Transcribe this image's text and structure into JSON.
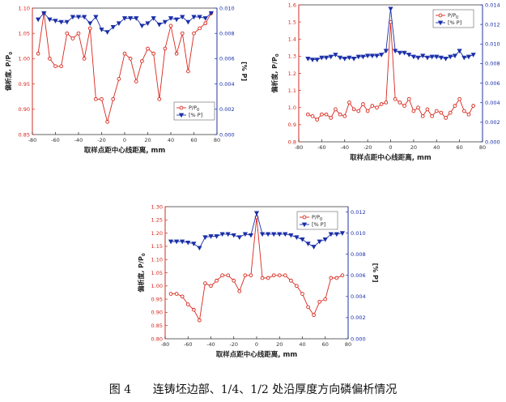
{
  "caption": "图 4      连铸坯边部、1/4、1/2 处沿厚度方向磷偏析情况",
  "chart_data": [
    {
      "type": "line",
      "xlabel": "取样点距中心线距离, mm",
      "ylabel": "偏析度, P/P",
      "ylabel_sub": "0",
      "y2label": "[% P]",
      "xlim": [
        -80,
        80
      ],
      "xticks": [
        -80,
        -60,
        -40,
        -20,
        0,
        20,
        40,
        60,
        80
      ],
      "ylim": [
        0.85,
        1.1
      ],
      "yticks": [
        0.85,
        0.9,
        0.95,
        1.0,
        1.05,
        1.1
      ],
      "ytick_labels": [
        "0.85",
        "0.90",
        "0.95",
        "1.00",
        "1.05",
        "1.10"
      ],
      "y2lim": [
        0,
        0.01
      ],
      "y2ticks": [
        0,
        0.002,
        0.004,
        0.006,
        0.008,
        0.01
      ],
      "y2tick_labels": [
        "0.000",
        "0.002",
        "0.004",
        "0.006",
        "0.008",
        "0.010"
      ],
      "legend_position": "middle-left",
      "legend": [
        {
          "label": "P/P",
          "sub": "0",
          "series": 0
        },
        {
          "label": "[% P]",
          "series": 1
        }
      ],
      "series": [
        {
          "marker": "circle",
          "color": "#d9261c",
          "axis": "left",
          "x": [
            -75,
            -70,
            -65,
            -60,
            -55,
            -50,
            -45,
            -40,
            -35,
            -30,
            -25,
            -20,
            -15,
            -10,
            -5,
            0,
            5,
            10,
            15,
            20,
            25,
            30,
            35,
            40,
            45,
            50,
            55,
            60,
            65,
            70,
            75
          ],
          "y": [
            1.01,
            1.09,
            1.0,
            0.985,
            0.985,
            1.05,
            1.04,
            1.05,
            1.0,
            1.06,
            0.92,
            0.92,
            0.875,
            0.92,
            0.96,
            1.01,
            1.0,
            0.955,
            0.995,
            1.02,
            1.01,
            0.92,
            1.02,
            1.065,
            1.01,
            1.05,
            0.975,
            1.05,
            1.06,
            1.07,
            1.09
          ]
        },
        {
          "marker": "triangle-down",
          "color": "#1a2fa8",
          "axis": "right",
          "x": [
            -75,
            -70,
            -65,
            -60,
            -55,
            -50,
            -45,
            -40,
            -35,
            -30,
            -25,
            -20,
            -15,
            -10,
            -5,
            0,
            5,
            10,
            15,
            20,
            25,
            30,
            35,
            40,
            45,
            50,
            55,
            60,
            65,
            70,
            75
          ],
          "y": [
            0.0091,
            0.0096,
            0.0091,
            0.009,
            0.0089,
            0.0089,
            0.0093,
            0.0093,
            0.0093,
            0.0088,
            0.0093,
            0.0083,
            0.0081,
            0.0085,
            0.0088,
            0.0092,
            0.0092,
            0.0092,
            0.0086,
            0.0088,
            0.0092,
            0.0087,
            0.0089,
            0.0092,
            0.0091,
            0.0093,
            0.0089,
            0.0093,
            0.0093,
            0.0092,
            0.0096
          ]
        }
      ]
    },
    {
      "type": "line",
      "xlabel": "取样点距中心线距离, mm",
      "ylabel": "偏析度, P/P",
      "ylabel_sub": "0",
      "y2label": "[% P]",
      "xlim": [
        -80,
        80
      ],
      "xticks": [
        -80,
        -60,
        -40,
        -20,
        0,
        20,
        40,
        60,
        80
      ],
      "ylim": [
        0.8,
        1.6
      ],
      "yticks": [
        0.8,
        0.9,
        1.0,
        1.1,
        1.2,
        1.3,
        1.4,
        1.5,
        1.6
      ],
      "ytick_labels": [
        "0.8",
        "0.9",
        "1.0",
        "1.1",
        "1.2",
        "1.3",
        "1.4",
        "1.5",
        "1.6"
      ],
      "y2lim": [
        0,
        0.014
      ],
      "y2ticks": [
        0,
        0.002,
        0.004,
        0.006,
        0.008,
        0.01,
        0.012,
        0.014
      ],
      "y2tick_labels": [
        "0.000",
        "0.002",
        "0.004",
        "0.006",
        "0.008",
        "0.010",
        "0.012",
        "0.014"
      ],
      "legend_position": "top-right",
      "legend": [
        {
          "label": "P/P",
          "sub": "0",
          "series": 0
        },
        {
          "label": "[% P]",
          "series": 1
        }
      ],
      "series": [
        {
          "marker": "circle",
          "color": "#d9261c",
          "axis": "left",
          "x": [
            -72,
            -68,
            -64,
            -60,
            -56,
            -52,
            -48,
            -44,
            -40,
            -36,
            -32,
            -28,
            -24,
            -20,
            -16,
            -12,
            -8,
            -4,
            0,
            4,
            8,
            12,
            16,
            20,
            24,
            28,
            32,
            36,
            40,
            44,
            48,
            52,
            56,
            60,
            64,
            68,
            72
          ],
          "y": [
            0.96,
            0.95,
            0.93,
            0.96,
            0.96,
            0.94,
            0.99,
            0.96,
            0.95,
            1.03,
            0.99,
            0.98,
            1.02,
            0.98,
            1.01,
            1.0,
            1.02,
            1.03,
            1.5,
            1.05,
            1.03,
            1.01,
            1.05,
            0.98,
            1.0,
            0.95,
            0.99,
            0.95,
            0.98,
            0.97,
            0.94,
            0.97,
            1.01,
            1.05,
            0.98,
            0.96,
            1.01
          ]
        },
        {
          "marker": "triangle-down",
          "color": "#1a2fa8",
          "axis": "right",
          "x": [
            -72,
            -68,
            -64,
            -60,
            -56,
            -52,
            -48,
            -44,
            -40,
            -36,
            -32,
            -28,
            -24,
            -20,
            -16,
            -12,
            -8,
            -4,
            0,
            4,
            8,
            12,
            16,
            20,
            24,
            28,
            32,
            36,
            40,
            44,
            48,
            52,
            56,
            60,
            64,
            68,
            72
          ],
          "y": [
            0.0085,
            0.0084,
            0.0084,
            0.0086,
            0.0086,
            0.0087,
            0.0089,
            0.0086,
            0.0085,
            0.0086,
            0.0085,
            0.0087,
            0.0087,
            0.0088,
            0.0088,
            0.0088,
            0.0089,
            0.0093,
            0.0136,
            0.0093,
            0.0091,
            0.0091,
            0.0089,
            0.0087,
            0.0086,
            0.0088,
            0.0086,
            0.0087,
            0.0087,
            0.0086,
            0.0085,
            0.0087,
            0.0088,
            0.0093,
            0.0086,
            0.0087,
            0.0089
          ]
        }
      ]
    },
    {
      "type": "line",
      "xlabel": "取样点距中心线距离, mm",
      "ylabel": "偏析度, P/P",
      "ylabel_sub": "0",
      "y2label": "[% P]",
      "xlim": [
        -80,
        80
      ],
      "xticks": [
        -80,
        -60,
        -40,
        -20,
        0,
        20,
        40,
        60,
        80
      ],
      "ylim": [
        0.8,
        1.3
      ],
      "yticks": [
        0.8,
        0.85,
        0.9,
        0.95,
        1.0,
        1.05,
        1.1,
        1.15,
        1.2,
        1.25,
        1.3
      ],
      "ytick_labels": [
        "0.80",
        "0.85",
        "0.90",
        "0.95",
        "1.00",
        "1.05",
        "1.10",
        "1.15",
        "1.20",
        "1.25",
        "1.30"
      ],
      "y2lim": [
        0,
        0.0125
      ],
      "y2ticks": [
        0,
        0.002,
        0.004,
        0.006,
        0.008,
        0.01,
        0.012
      ],
      "y2tick_labels": [
        "0.000",
        "0.002",
        "0.004",
        "0.006",
        "0.008",
        "0.010",
        "0.012"
      ],
      "legend_position": "top-right",
      "legend": [
        {
          "label": "P/P",
          "sub": "0",
          "series": 0
        },
        {
          "label": "[% P]",
          "series": 1
        }
      ],
      "series": [
        {
          "marker": "circle",
          "color": "#d9261c",
          "axis": "left",
          "x": [
            -75,
            -70,
            -65,
            -60,
            -55,
            -50,
            -45,
            -40,
            -35,
            -30,
            -25,
            -20,
            -15,
            -10,
            -5,
            0,
            5,
            10,
            15,
            20,
            25,
            30,
            35,
            40,
            45,
            50,
            55,
            60,
            65,
            70,
            75
          ],
          "y": [
            0.97,
            0.97,
            0.96,
            0.93,
            0.91,
            0.87,
            1.01,
            1.0,
            1.02,
            1.04,
            1.04,
            1.02,
            0.98,
            1.04,
            1.04,
            1.26,
            1.03,
            1.03,
            1.04,
            1.04,
            1.04,
            1.02,
            1.0,
            0.97,
            0.92,
            0.89,
            0.94,
            0.95,
            1.03,
            1.03,
            1.04
          ]
        },
        {
          "marker": "triangle-down",
          "color": "#1a2fa8",
          "axis": "right",
          "x": [
            -75,
            -70,
            -65,
            -60,
            -55,
            -50,
            -45,
            -40,
            -35,
            -30,
            -25,
            -20,
            -15,
            -10,
            -5,
            0,
            5,
            10,
            15,
            20,
            25,
            30,
            35,
            40,
            45,
            50,
            55,
            60,
            65,
            70,
            75
          ],
          "y": [
            0.0092,
            0.0092,
            0.0092,
            0.0091,
            0.009,
            0.0086,
            0.0096,
            0.0097,
            0.0097,
            0.0099,
            0.0099,
            0.0098,
            0.0096,
            0.0099,
            0.0098,
            0.0119,
            0.0099,
            0.0099,
            0.0099,
            0.0099,
            0.0099,
            0.0098,
            0.0096,
            0.0094,
            0.009,
            0.0087,
            0.0092,
            0.0094,
            0.0099,
            0.0099,
            0.01
          ]
        }
      ]
    }
  ]
}
